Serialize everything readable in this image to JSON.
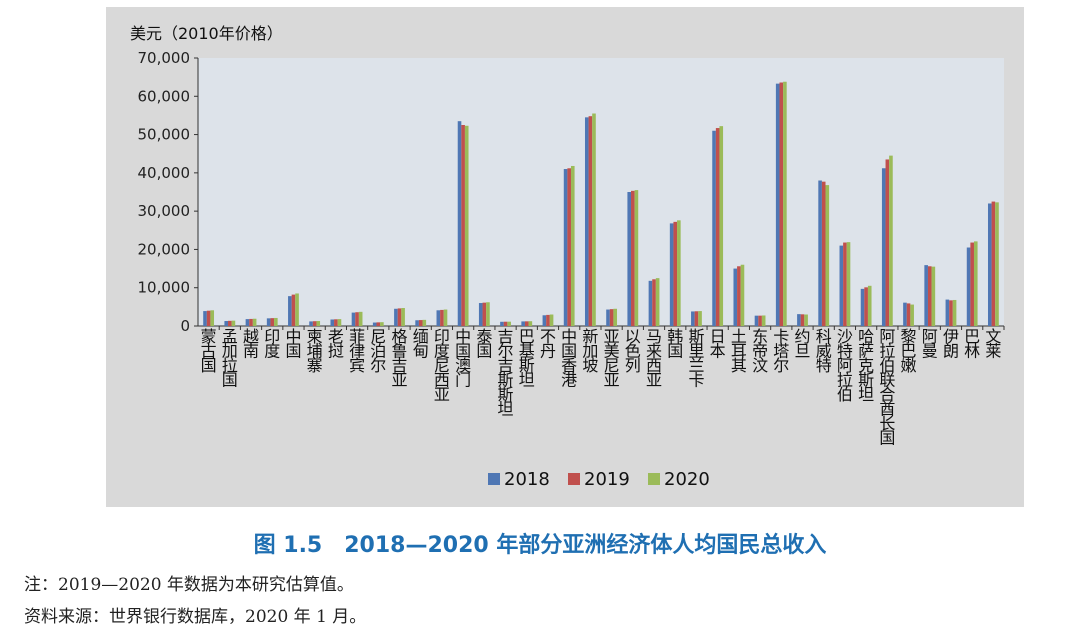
{
  "figure": {
    "caption": "图 1.5　2018—2020 年部分亚洲经济体人均国民总收入",
    "note": "注：2019—2020 年数据为本研究估算值。",
    "source": "资料来源：世界银行数据库，2020 年 1 月。"
  },
  "chart_data": {
    "type": "bar",
    "ylabel": "美元（2010年价格）",
    "ylim": [
      0,
      70000
    ],
    "yticks": [
      0,
      10000,
      20000,
      30000,
      40000,
      50000,
      60000,
      70000
    ],
    "ytick_labels": [
      "0",
      "10,000",
      "20,000",
      "30,000",
      "40,000",
      "50,000",
      "60,000",
      "70,000"
    ],
    "grid": false,
    "legend_position": "bottom-center",
    "categories": [
      "蒙古国",
      "孟加拉国",
      "越南",
      "印度",
      "中国",
      "柬埔寨",
      "老挝",
      "菲律宾",
      "尼泊尔",
      "格鲁吉亚",
      "缅甸",
      "印度尼西亚",
      "中国澳门",
      "泰国",
      "吉尔吉斯斯坦",
      "巴基斯坦",
      "不丹",
      "中国香港",
      "新加坡",
      "亚美尼亚",
      "以色列",
      "马来西亚",
      "韩国",
      "斯里兰卡",
      "日本",
      "土耳其",
      "东帝汶",
      "卡塔尔",
      "约旦",
      "科威特",
      "沙特阿拉伯",
      "哈萨克斯坦",
      "阿拉伯联合酋长国",
      "黎巴嫩",
      "阿曼",
      "伊朗",
      "巴林",
      "文莱"
    ],
    "series": [
      {
        "name": "2018",
        "color": "#4f77b4",
        "values": [
          3900,
          1300,
          1800,
          2000,
          7800,
          1200,
          1700,
          3500,
          900,
          4500,
          1500,
          4100,
          53500,
          6000,
          1100,
          1200,
          2800,
          41000,
          54500,
          4300,
          35000,
          11800,
          26800,
          3800,
          51000,
          15000,
          2700,
          63300,
          3100,
          38000,
          21000,
          9700,
          41200,
          6100,
          15900,
          6900,
          20500,
          32000
        ]
      },
      {
        "name": "2019",
        "color": "#c0504d",
        "values": [
          4000,
          1350,
          1850,
          2050,
          8200,
          1250,
          1750,
          3600,
          950,
          4600,
          1550,
          4200,
          52500,
          6100,
          1120,
          1220,
          2900,
          41200,
          54800,
          4400,
          35300,
          12200,
          27200,
          3850,
          51700,
          15600,
          2700,
          63600,
          3050,
          37700,
          21800,
          10100,
          43500,
          5900,
          15600,
          6700,
          21800,
          32500
        ]
      },
      {
        "name": "2020",
        "color": "#9bbb59",
        "values": [
          4100,
          1400,
          1900,
          2100,
          8500,
          1300,
          1800,
          3700,
          1000,
          4700,
          1600,
          4300,
          52300,
          6200,
          1130,
          1250,
          3000,
          41800,
          55500,
          4500,
          35500,
          12500,
          27600,
          3900,
          52200,
          16000,
          2750,
          63800,
          3000,
          36800,
          21900,
          10500,
          44500,
          5600,
          15500,
          6800,
          22100,
          32300
        ]
      }
    ]
  }
}
